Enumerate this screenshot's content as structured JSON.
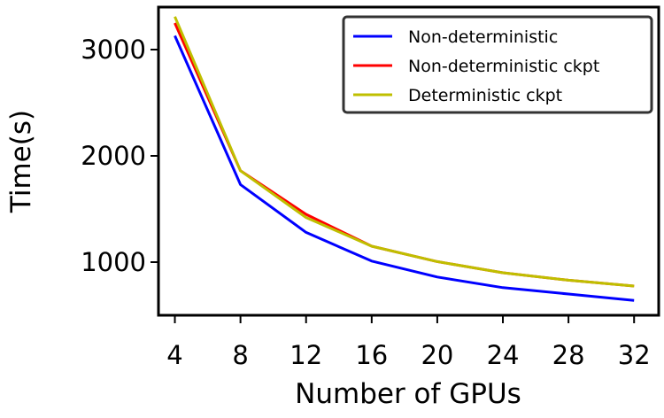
{
  "chart_data": {
    "type": "line",
    "title": "",
    "xlabel": "Number of GPUs",
    "ylabel": "Time(s)",
    "x": [
      4,
      8,
      12,
      16,
      20,
      24,
      28,
      32
    ],
    "xlim": [
      3,
      33.5
    ],
    "ylim": [
      500,
      3400
    ],
    "xticks": [
      "4",
      "8",
      "12",
      "16",
      "20",
      "24",
      "28",
      "32"
    ],
    "yticks": [
      "1000",
      "2000",
      "3000"
    ],
    "grid": false,
    "legend_position": "top-right",
    "series": [
      {
        "name": "Non-deterministic",
        "color": "#0000ff",
        "values": [
          3130,
          1730,
          1280,
          1010,
          860,
          760,
          700,
          640
        ]
      },
      {
        "name": "Non-deterministic ckpt",
        "color": "#ff0000",
        "values": [
          3250,
          1860,
          1450,
          1150,
          1005,
          900,
          830,
          775
        ]
      },
      {
        "name": "Deterministic ckpt",
        "color": "#bfbf00",
        "values": [
          3310,
          1860,
          1420,
          1150,
          1005,
          900,
          830,
          775
        ]
      }
    ]
  }
}
